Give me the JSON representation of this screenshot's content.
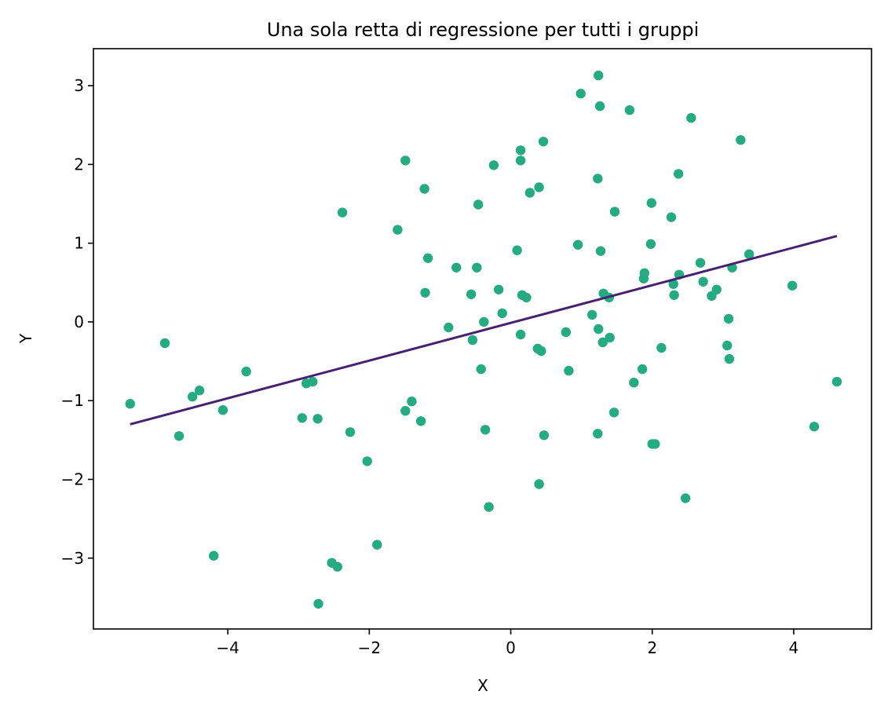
{
  "chart_data": {
    "type": "scatter",
    "title": "Una sola retta di regressione per tutti i gruppi",
    "xlabel": "X",
    "ylabel": "Y",
    "xlim": [
      -5.9,
      5.1
    ],
    "ylim": [
      -3.9,
      3.47
    ],
    "xticks": [
      -4,
      -2,
      0,
      2,
      4
    ],
    "yticks": [
      -3,
      -2,
      -1,
      0,
      1,
      2,
      3
    ],
    "xtick_labels": [
      "−4",
      "−2",
      "0",
      "2",
      "4"
    ],
    "ytick_labels": [
      "−3",
      "−2",
      "−1",
      "0",
      "1",
      "2",
      "3"
    ],
    "grid": false,
    "colors": {
      "points": "#25ab81",
      "line": "#482173"
    },
    "series": [
      {
        "type": "scatter",
        "points": [
          [
            -5.38,
            -1.04
          ],
          [
            -4.89,
            -0.27
          ],
          [
            -4.69,
            -1.45
          ],
          [
            -4.5,
            -0.95
          ],
          [
            -4.4,
            -0.87
          ],
          [
            -4.2,
            -2.97
          ],
          [
            -4.07,
            -1.12
          ],
          [
            -3.74,
            -0.63
          ],
          [
            -2.95,
            -1.22
          ],
          [
            -2.89,
            -0.78
          ],
          [
            -2.8,
            -0.76
          ],
          [
            -2.73,
            -1.23
          ],
          [
            -2.72,
            -3.58
          ],
          [
            -2.53,
            -3.06
          ],
          [
            -2.45,
            -3.11
          ],
          [
            -2.38,
            1.39
          ],
          [
            -2.27,
            -1.4
          ],
          [
            -2.03,
            -1.77
          ],
          [
            -1.89,
            -2.83
          ],
          [
            -1.6,
            1.17
          ],
          [
            -1.49,
            2.05
          ],
          [
            -1.49,
            -1.13
          ],
          [
            -1.4,
            -1.01
          ],
          [
            -1.27,
            -1.26
          ],
          [
            -1.22,
            1.69
          ],
          [
            -1.21,
            0.37
          ],
          [
            -1.17,
            0.81
          ],
          [
            -0.88,
            -0.07
          ],
          [
            -0.77,
            0.69
          ],
          [
            -0.56,
            0.35
          ],
          [
            -0.54,
            -0.23
          ],
          [
            -0.48,
            0.69
          ],
          [
            -0.46,
            1.49
          ],
          [
            -0.42,
            -0.6
          ],
          [
            -0.38,
            0.0
          ],
          [
            -0.36,
            -1.37
          ],
          [
            -0.31,
            -2.35
          ],
          [
            -0.24,
            1.99
          ],
          [
            -0.17,
            0.41
          ],
          [
            -0.12,
            0.11
          ],
          [
            0.09,
            0.91
          ],
          [
            0.14,
            2.05
          ],
          [
            0.14,
            2.18
          ],
          [
            0.14,
            -0.16
          ],
          [
            0.16,
            0.34
          ],
          [
            0.22,
            0.31
          ],
          [
            0.27,
            1.64
          ],
          [
            0.38,
            -0.34
          ],
          [
            0.4,
            1.71
          ],
          [
            0.4,
            -2.06
          ],
          [
            0.43,
            -0.37
          ],
          [
            0.46,
            2.29
          ],
          [
            0.47,
            -1.44
          ],
          [
            0.78,
            -0.13
          ],
          [
            0.82,
            -0.62
          ],
          [
            0.95,
            0.98
          ],
          [
            0.99,
            2.9
          ],
          [
            1.15,
            0.09
          ],
          [
            1.23,
            -1.42
          ],
          [
            1.23,
            1.82
          ],
          [
            1.24,
            3.13
          ],
          [
            1.24,
            -0.09
          ],
          [
            1.26,
            2.74
          ],
          [
            1.27,
            0.9
          ],
          [
            1.3,
            -0.26
          ],
          [
            1.31,
            0.36
          ],
          [
            1.39,
            0.31
          ],
          [
            1.4,
            -0.2
          ],
          [
            1.46,
            -1.15
          ],
          [
            1.47,
            1.4
          ],
          [
            1.68,
            2.69
          ],
          [
            1.74,
            -0.77
          ],
          [
            1.86,
            -0.6
          ],
          [
            1.88,
            0.55
          ],
          [
            1.89,
            0.62
          ],
          [
            1.98,
            0.99
          ],
          [
            1.99,
            1.51
          ],
          [
            2.0,
            -1.55
          ],
          [
            2.04,
            -1.55
          ],
          [
            2.13,
            -0.33
          ],
          [
            2.27,
            1.33
          ],
          [
            2.3,
            0.48
          ],
          [
            2.31,
            0.34
          ],
          [
            2.37,
            1.88
          ],
          [
            2.38,
            0.6
          ],
          [
            2.47,
            -2.24
          ],
          [
            2.55,
            2.59
          ],
          [
            2.68,
            0.75
          ],
          [
            2.72,
            0.51
          ],
          [
            2.84,
            0.33
          ],
          [
            2.91,
            0.41
          ],
          [
            3.06,
            -0.3
          ],
          [
            3.08,
            0.04
          ],
          [
            3.09,
            -0.47
          ],
          [
            3.13,
            0.69
          ],
          [
            3.25,
            2.31
          ],
          [
            3.37,
            0.86
          ],
          [
            3.98,
            0.46
          ],
          [
            4.29,
            -1.33
          ],
          [
            4.61,
            -0.76
          ]
        ]
      },
      {
        "type": "line",
        "points": [
          [
            -5.38,
            -1.3
          ],
          [
            4.61,
            1.09
          ]
        ]
      }
    ]
  }
}
